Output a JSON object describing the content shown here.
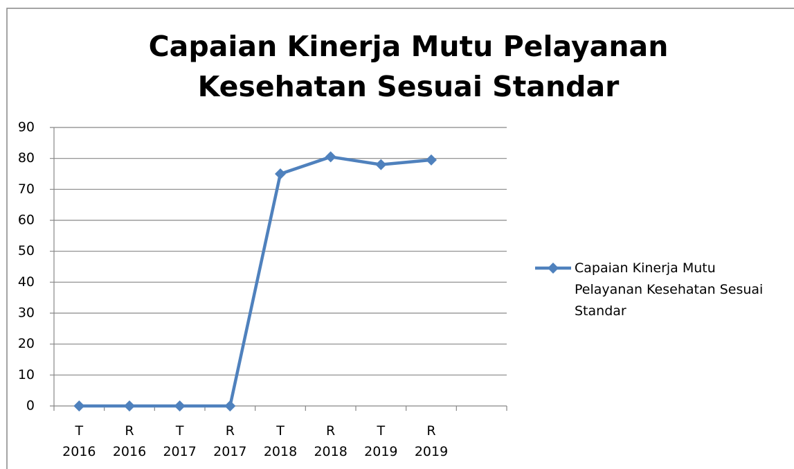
{
  "chart_data": {
    "type": "line",
    "title": "Capaian Kinerja Mutu Pelayanan Kesehatan Sesuai Standar",
    "categories": [
      "T 2016",
      "R 2016",
      "T 2017",
      "R 2017",
      "T 2018",
      "R 2018",
      "T 2019",
      "R 2019",
      null
    ],
    "series": [
      {
        "name": "Capaian Kinerja Mutu Pelayanan Kesehatan Sesuai Standar",
        "color": "#4f81bd",
        "values": [
          0,
          0,
          0,
          0,
          75,
          80.5,
          78,
          79.5,
          null
        ]
      }
    ],
    "ylim": [
      0,
      90
    ],
    "yticks": [
      0,
      10,
      20,
      30,
      40,
      50,
      60,
      70,
      80,
      90
    ],
    "grid": true,
    "legend": "right"
  }
}
